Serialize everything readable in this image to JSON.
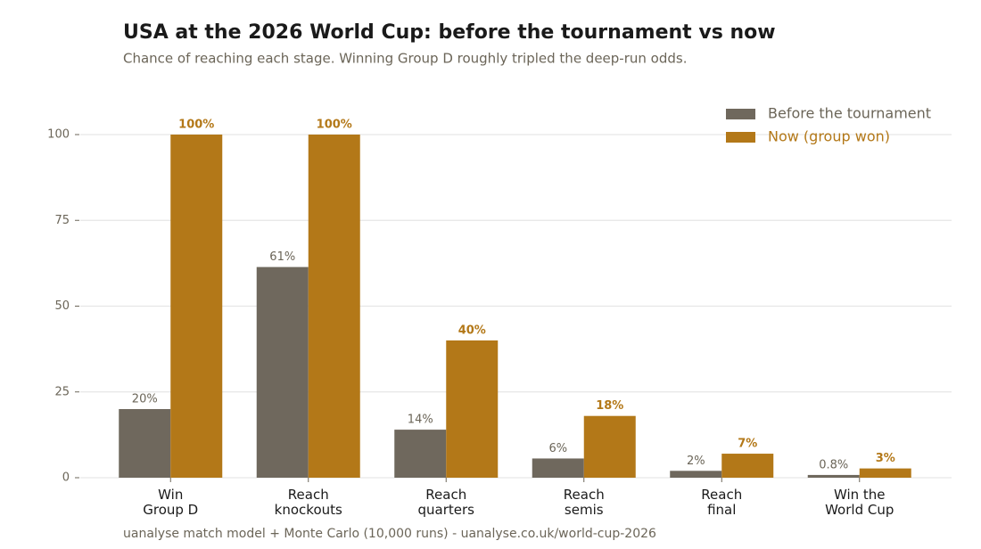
{
  "chart_data": {
    "type": "bar",
    "title": "USA at the 2026 World Cup: before the tournament vs now",
    "subtitle": "Chance of reaching each stage. Winning Group D roughly tripled the deep-run odds.",
    "footer": "uanalyse match model + Monte Carlo (10,000 runs)  -  uanalyse.co.uk/world-cup-2026",
    "categories": [
      "Win\nGroup D",
      "Reach\nknockouts",
      "Reach\nquarters",
      "Reach\nsemis",
      "Reach\nfinal",
      "Win the\nWorld Cup"
    ],
    "series": [
      {
        "name": "Before the tournament",
        "color": "#6f685d",
        "values": [
          20,
          61.4,
          14,
          5.6,
          2,
          0.8
        ],
        "value_labels": [
          "20%",
          "61%",
          "14%",
          "6%",
          "2%",
          "0.8%"
        ]
      },
      {
        "name": "Now (group won)",
        "color": "#b37818",
        "values": [
          100,
          100,
          40,
          18,
          7,
          2.7
        ],
        "value_labels": [
          "100%",
          "100%",
          "40%",
          "18%",
          "7%",
          "3%"
        ]
      }
    ],
    "ylim": [
      0,
      110
    ],
    "yticks": [
      0,
      25,
      50,
      75,
      100
    ],
    "grid": true,
    "legend": "upper right"
  }
}
